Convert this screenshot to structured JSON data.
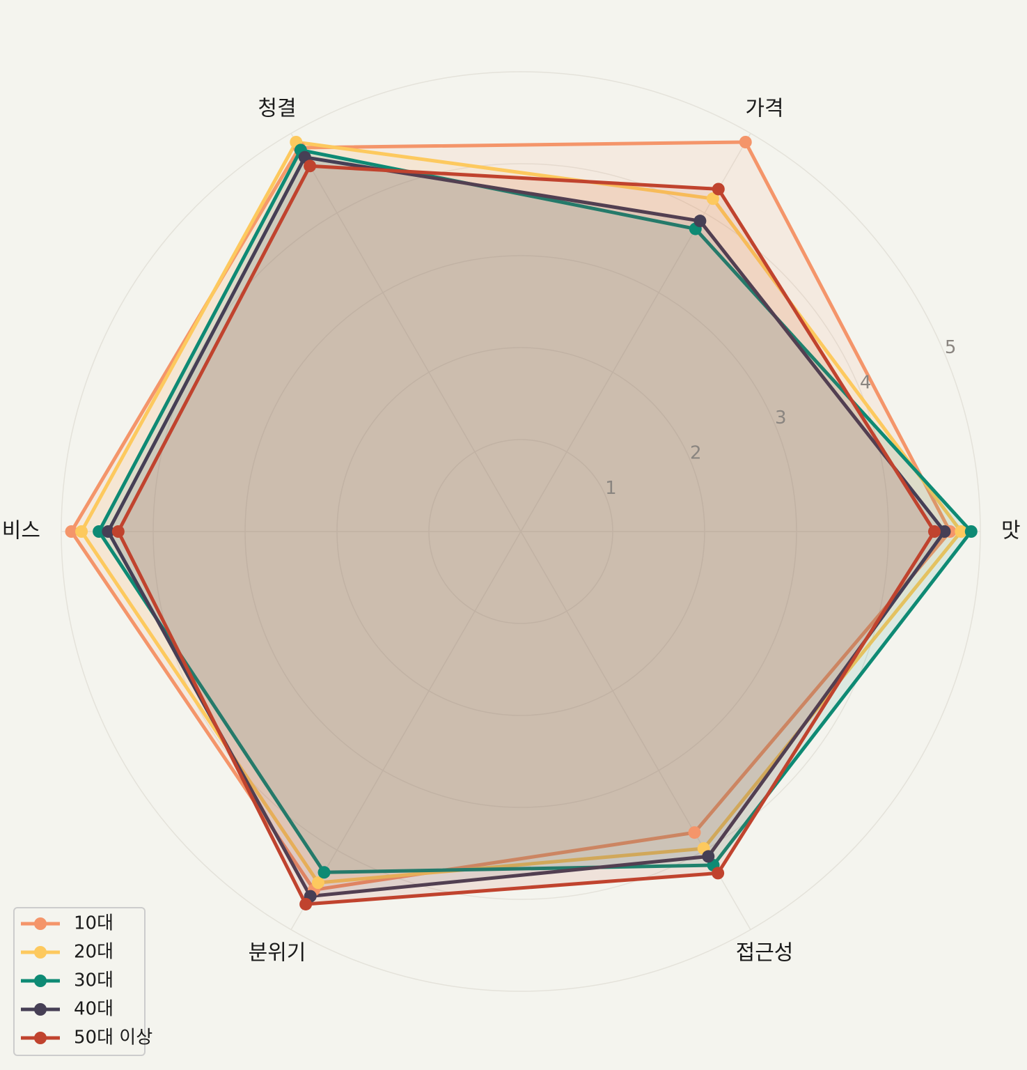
{
  "chart_data": {
    "type": "radar",
    "categories": [
      "맛",
      "가격",
      "청결",
      "서비스",
      "분위기",
      "접근성"
    ],
    "series": [
      {
        "name": "10대",
        "color": "#f4956a",
        "values": [
          4.67,
          4.89,
          4.82,
          4.89,
          4.5,
          3.78
        ]
      },
      {
        "name": "20대",
        "color": "#fdc95e",
        "values": [
          4.79,
          4.18,
          4.89,
          4.78,
          4.41,
          3.98
        ]
      },
      {
        "name": "30대",
        "color": "#0e8a74",
        "values": [
          4.9,
          3.8,
          4.79,
          4.59,
          4.28,
          4.19
        ]
      },
      {
        "name": "40대",
        "color": "#463f55",
        "values": [
          4.61,
          3.9,
          4.7,
          4.49,
          4.58,
          4.08
        ]
      },
      {
        "name": "50대 이상",
        "color": "#c0432e",
        "values": [
          4.5,
          4.3,
          4.59,
          4.38,
          4.68,
          4.29
        ]
      }
    ],
    "ylim": [
      0,
      5
    ],
    "yticks": [
      1,
      2,
      3,
      4,
      5
    ],
    "grid": true,
    "legend": "lower left"
  }
}
